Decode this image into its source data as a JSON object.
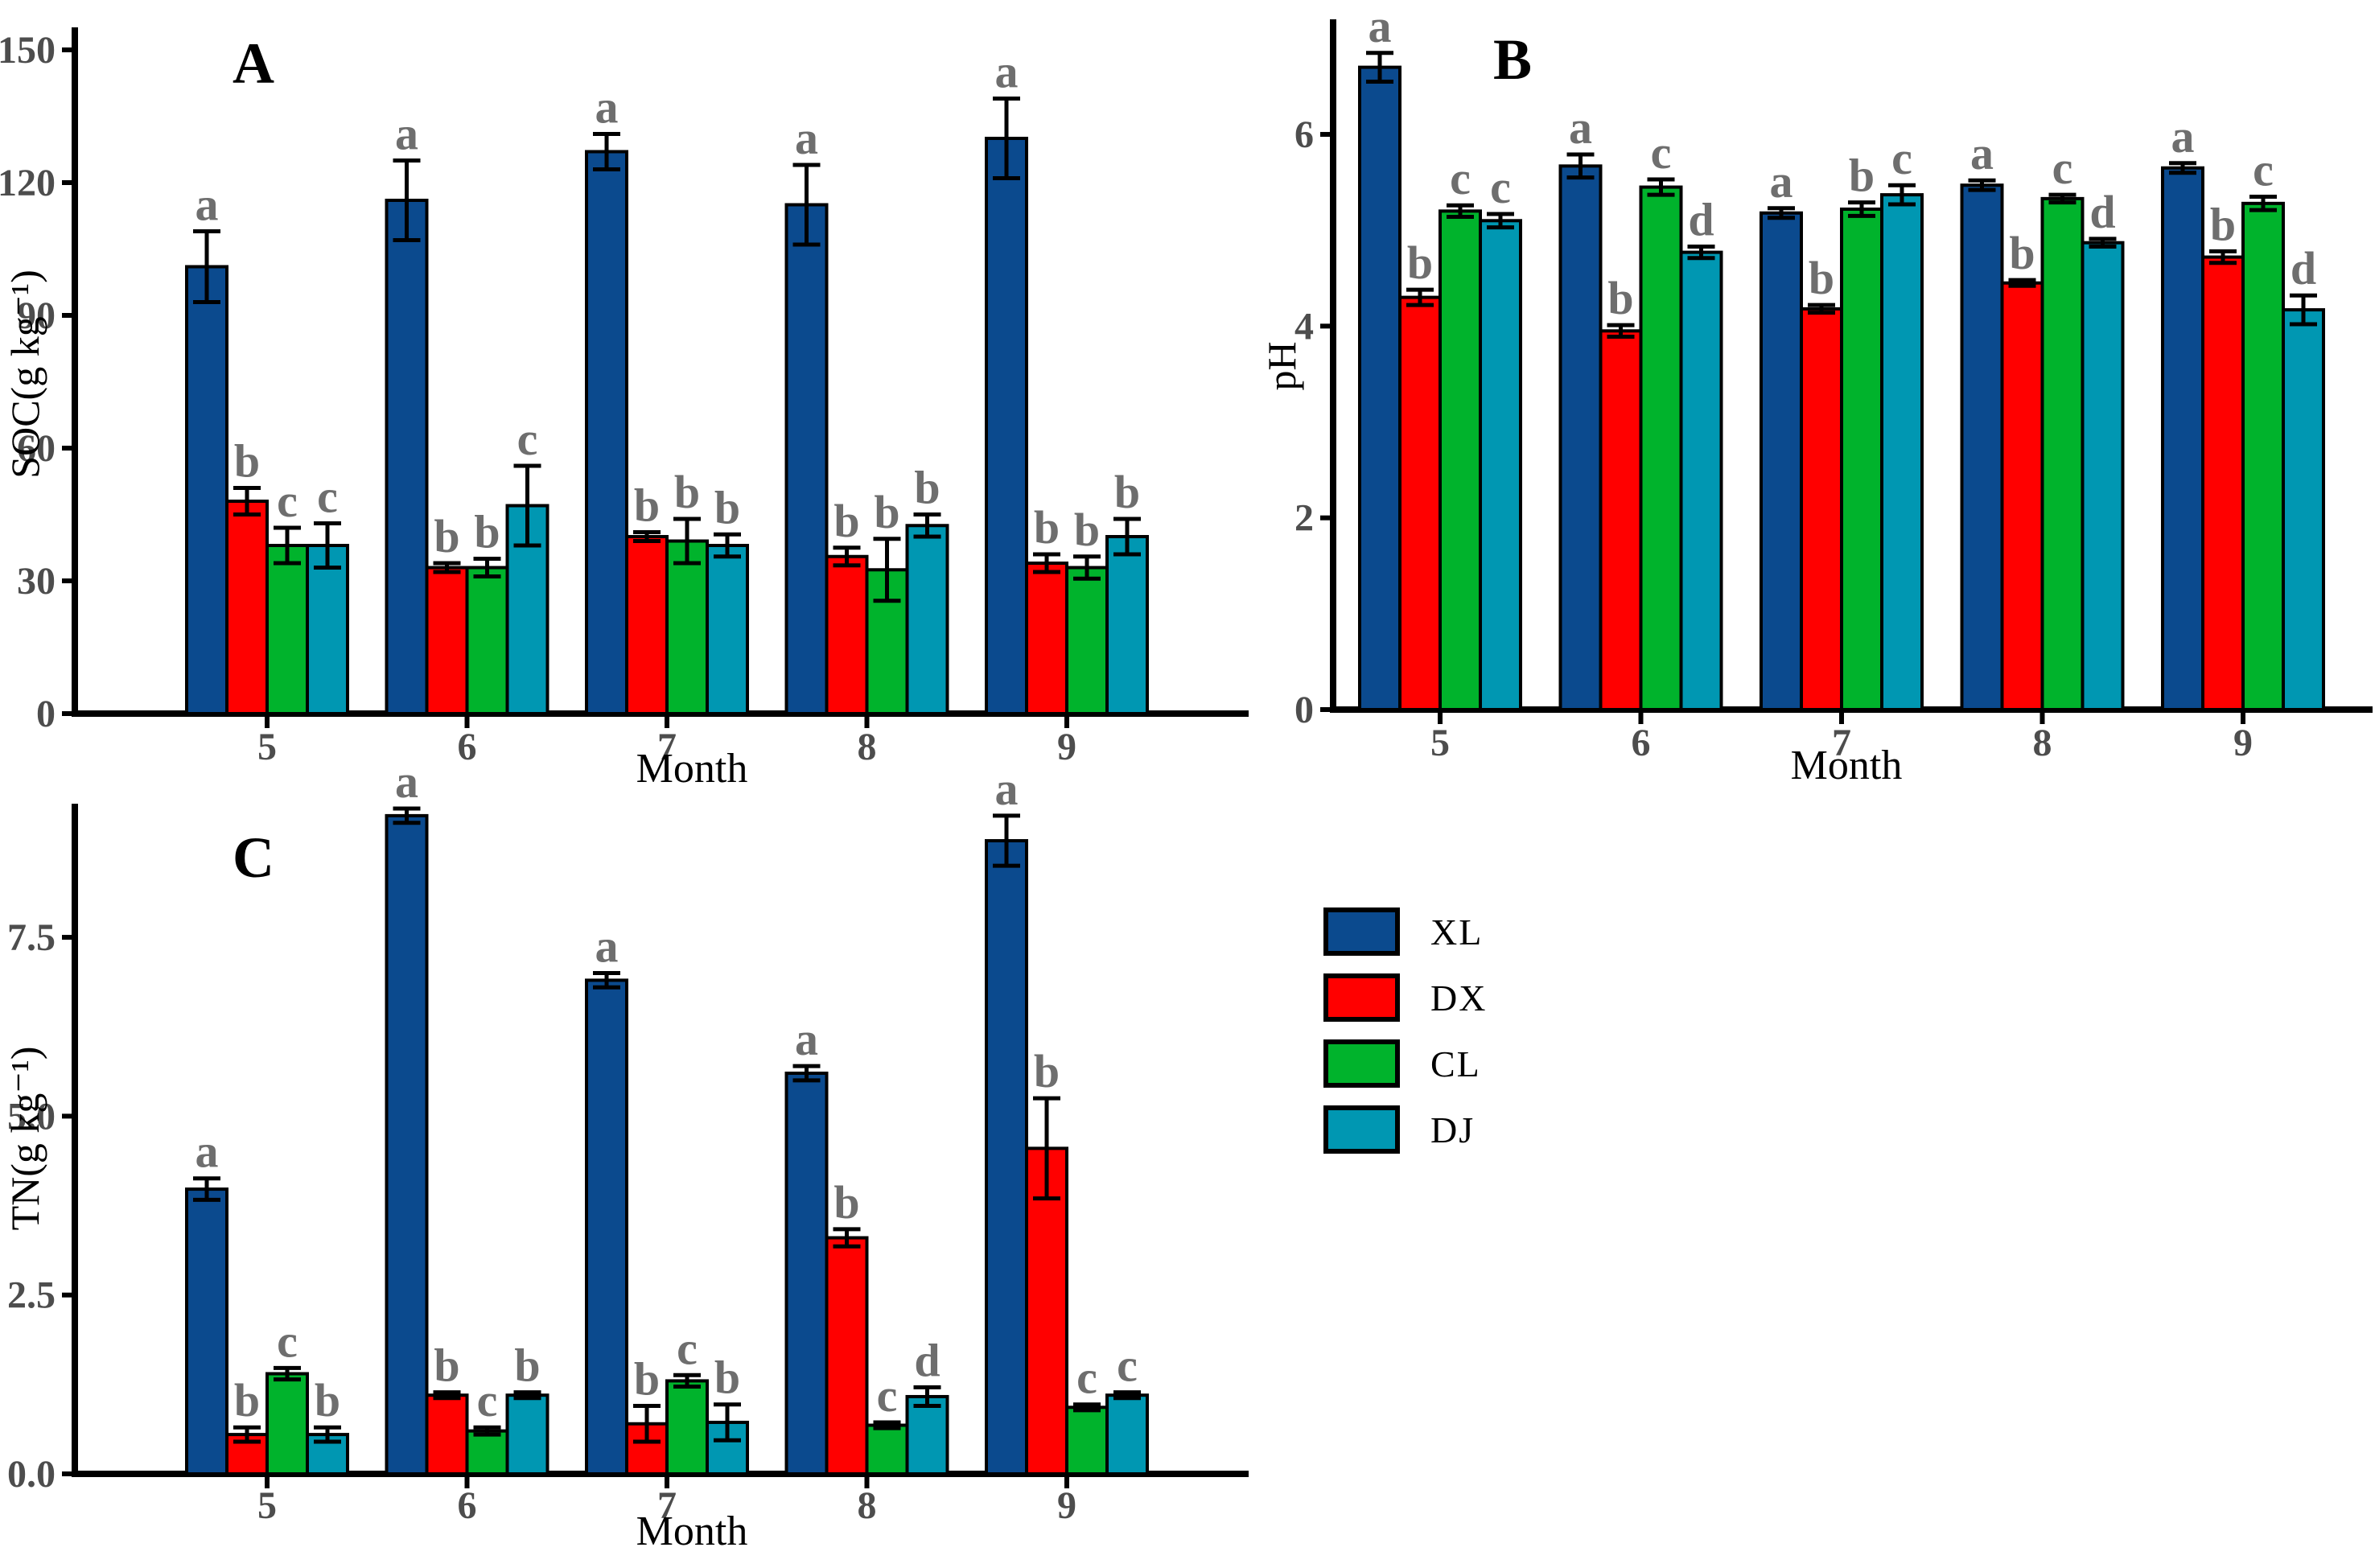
{
  "figure": {
    "background": "#ffffff"
  },
  "colors": {
    "XL": "#0B4A8E",
    "DX": "#FF0000",
    "CL": "#00B32C",
    "DJ": "#0097B2",
    "letter": "#6e6e6e",
    "tick": "#4d4d4d",
    "axis": "#000000"
  },
  "legend": {
    "items": [
      {
        "label": "XL",
        "color_key": "XL"
      },
      {
        "label": "DX",
        "color_key": "DX"
      },
      {
        "label": "CL",
        "color_key": "CL"
      },
      {
        "label": "DJ",
        "color_key": "DJ"
      }
    ]
  },
  "chart_data": [
    {
      "id": "A",
      "type": "bar",
      "panel_label": "A",
      "xlabel": "Month",
      "ylabel": "SOC(g kg⁻¹)",
      "categories": [
        "5",
        "6",
        "7",
        "8",
        "9"
      ],
      "ylim": [
        0,
        154
      ],
      "yticks": [
        0,
        30,
        60,
        90,
        120,
        150
      ],
      "ytick_labels": [
        "0",
        "30",
        "60",
        "90",
        "120",
        "150"
      ],
      "grid": false,
      "series": [
        {
          "name": "XL",
          "values": [
            101,
            116,
            127,
            115,
            130
          ],
          "errors": [
            8,
            9,
            4,
            9,
            9
          ],
          "letters": [
            "a",
            "a",
            "a",
            "a",
            "a"
          ]
        },
        {
          "name": "DX",
          "values": [
            48,
            33,
            40,
            35.5,
            34
          ],
          "errors": [
            3,
            1,
            1,
            2,
            2
          ],
          "letters": [
            "b",
            "b",
            "b",
            "b",
            "b"
          ]
        },
        {
          "name": "CL",
          "values": [
            38,
            33,
            39,
            32.5,
            33
          ],
          "errors": [
            4,
            2,
            5,
            7,
            2.5
          ],
          "letters": [
            "c",
            "b",
            "b",
            "b",
            "b"
          ]
        },
        {
          "name": "DJ",
          "values": [
            38,
            47,
            38,
            42.5,
            40
          ],
          "errors": [
            5,
            9,
            2.5,
            2.5,
            4
          ],
          "letters": [
            "c",
            "c",
            "b",
            "b",
            "b"
          ]
        }
      ]
    },
    {
      "id": "B",
      "type": "bar",
      "panel_label": "B",
      "xlabel": "Month",
      "ylabel": "pH",
      "categories": [
        "5",
        "6",
        "7",
        "8",
        "9"
      ],
      "ylim": [
        0,
        7.15
      ],
      "yticks": [
        0,
        2,
        4,
        6
      ],
      "ytick_labels": [
        "0",
        "2",
        "4",
        "6"
      ],
      "grid": false,
      "series": [
        {
          "name": "XL",
          "values": [
            6.7,
            5.67,
            5.18,
            5.47,
            5.65
          ],
          "errors": [
            0.15,
            0.12,
            0.05,
            0.05,
            0.05
          ],
          "letters": [
            "a",
            "a",
            "a",
            "a",
            "a"
          ]
        },
        {
          "name": "DX",
          "values": [
            4.3,
            3.95,
            4.18,
            4.45,
            4.72
          ],
          "errors": [
            0.08,
            0.06,
            0.04,
            0.03,
            0.06
          ],
          "letters": [
            "b",
            "b",
            "b",
            "b",
            "b"
          ]
        },
        {
          "name": "CL",
          "values": [
            5.2,
            5.45,
            5.22,
            5.33,
            5.28
          ],
          "errors": [
            0.06,
            0.08,
            0.07,
            0.04,
            0.07
          ],
          "letters": [
            "c",
            "c",
            "b",
            "c",
            "c"
          ]
        },
        {
          "name": "DJ",
          "values": [
            5.1,
            4.77,
            5.37,
            4.87,
            4.17
          ],
          "errors": [
            0.07,
            0.06,
            0.1,
            0.04,
            0.15
          ],
          "letters": [
            "c",
            "d",
            "c",
            "d",
            "d"
          ]
        }
      ]
    },
    {
      "id": "C",
      "type": "bar",
      "panel_label": "C",
      "xlabel": "Month",
      "ylabel": "TN(g kg⁻¹)",
      "categories": [
        "5",
        "6",
        "7",
        "8",
        "9"
      ],
      "ylim": [
        0,
        9.3
      ],
      "yticks": [
        0,
        2.5,
        5,
        7.5
      ],
      "ytick_labels": [
        "0.0",
        "2.5",
        "5.0",
        "7.5"
      ],
      "grid": false,
      "series": [
        {
          "name": "XL",
          "values": [
            3.98,
            9.2,
            6.9,
            5.6,
            8.85
          ],
          "errors": [
            0.15,
            0.1,
            0.1,
            0.1,
            0.35
          ],
          "letters": [
            "a",
            "a",
            "a",
            "a",
            "a"
          ]
        },
        {
          "name": "DX",
          "values": [
            0.55,
            1.1,
            0.7,
            3.3,
            4.55
          ],
          "errors": [
            0.1,
            0.04,
            0.25,
            0.12,
            0.7
          ],
          "letters": [
            "b",
            "b",
            "b",
            "b",
            "b"
          ]
        },
        {
          "name": "CL",
          "values": [
            1.4,
            0.6,
            1.3,
            0.68,
            0.93
          ],
          "errors": [
            0.08,
            0.05,
            0.08,
            0.04,
            0.04
          ],
          "letters": [
            "c",
            "c",
            "c",
            "c",
            "c"
          ]
        },
        {
          "name": "DJ",
          "values": [
            0.55,
            1.1,
            0.72,
            1.08,
            1.1
          ],
          "errors": [
            0.1,
            0.04,
            0.25,
            0.13,
            0.04
          ],
          "letters": [
            "b",
            "b",
            "b",
            "d",
            "c"
          ]
        }
      ]
    }
  ]
}
